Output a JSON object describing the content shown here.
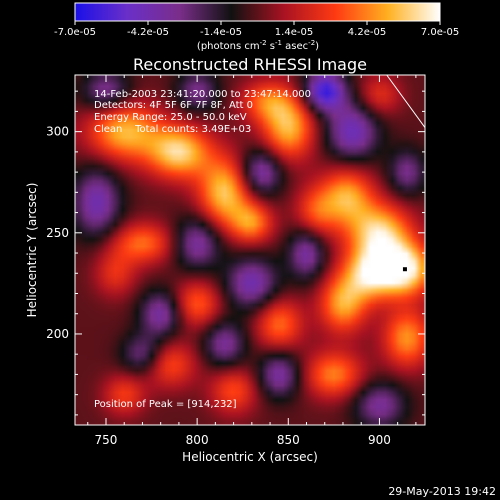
{
  "chart_data": {
    "type": "heatmap",
    "title": "Reconstructed RHESSI Image",
    "xlabel": "Heliocentric X (arcsec)",
    "ylabel": "Heliocentric Y (arcsec)",
    "xlim": [
      733,
      925
    ],
    "ylim": [
      155,
      328
    ],
    "x_ticks": [
      750,
      800,
      850,
      900
    ],
    "y_ticks": [
      200,
      250,
      300
    ],
    "colorbar": {
      "min": -7e-05,
      "max": 7e-05,
      "tick_labels": [
        "-7.0e-05",
        "-4.2e-05",
        "-1.4e-05",
        "1.4e-05",
        "4.2e-05",
        "7.0e-05"
      ],
      "unit_label_parts": {
        "pre": "(photons cm",
        "exp1": "-2",
        "mid": " s",
        "exp2": "-1",
        "mid2": " asec",
        "exp3": "-2",
        "post": ")"
      },
      "colormap": [
        "#1a10e8",
        "#6a2fc8",
        "#7a2e8a",
        "#111111",
        "#a81222",
        "#ff3a12",
        "#ffb020",
        "#ffffff"
      ]
    },
    "annotations": [
      "14-Feb-2003 23:41:20.000 to 23:47:14.000",
      "Detectors: 4F 5F 6F 7F 8F, Att 0",
      "Energy Range: 25.0 - 50.0 keV",
      "Clean    Total counts: 3.49E+03"
    ],
    "peak_label": "Position of Peak = [914,232]",
    "peak": {
      "x": 914,
      "y": 232
    },
    "blobs": [
      {
        "x": 760,
        "y": 300,
        "v": 0.75,
        "sx": 14,
        "sy": 10
      },
      {
        "x": 790,
        "y": 290,
        "v": 0.85,
        "sx": 12,
        "sy": 9
      },
      {
        "x": 815,
        "y": 270,
        "v": 0.8,
        "sx": 10,
        "sy": 12
      },
      {
        "x": 830,
        "y": 255,
        "v": 0.6,
        "sx": 8,
        "sy": 7
      },
      {
        "x": 770,
        "y": 245,
        "v": 0.55,
        "sx": 12,
        "sy": 7
      },
      {
        "x": 755,
        "y": 230,
        "v": 0.35,
        "sx": 8,
        "sy": 8
      },
      {
        "x": 850,
        "y": 302,
        "v": 0.75,
        "sx": 10,
        "sy": 11
      },
      {
        "x": 838,
        "y": 315,
        "v": 0.5,
        "sx": 10,
        "sy": 7
      },
      {
        "x": 865,
        "y": 260,
        "v": 0.45,
        "sx": 8,
        "sy": 9
      },
      {
        "x": 882,
        "y": 268,
        "v": 0.7,
        "sx": 10,
        "sy": 10
      },
      {
        "x": 900,
        "y": 250,
        "v": 0.85,
        "sx": 12,
        "sy": 10
      },
      {
        "x": 914,
        "y": 232,
        "v": 1.0,
        "sx": 10,
        "sy": 9
      },
      {
        "x": 895,
        "y": 230,
        "v": 0.85,
        "sx": 10,
        "sy": 9
      },
      {
        "x": 880,
        "y": 215,
        "v": 0.7,
        "sx": 9,
        "sy": 10
      },
      {
        "x": 915,
        "y": 198,
        "v": 0.65,
        "sx": 9,
        "sy": 10
      },
      {
        "x": 875,
        "y": 180,
        "v": 0.6,
        "sx": 11,
        "sy": 8
      },
      {
        "x": 845,
        "y": 205,
        "v": 0.55,
        "sx": 9,
        "sy": 9
      },
      {
        "x": 800,
        "y": 215,
        "v": 0.5,
        "sx": 9,
        "sy": 8
      },
      {
        "x": 785,
        "y": 185,
        "v": 0.45,
        "sx": 10,
        "sy": 8
      },
      {
        "x": 760,
        "y": 170,
        "v": 0.4,
        "sx": 8,
        "sy": 7
      },
      {
        "x": 820,
        "y": 172,
        "v": 0.45,
        "sx": 9,
        "sy": 8
      },
      {
        "x": 900,
        "y": 318,
        "v": 0.35,
        "sx": 8,
        "sy": 7
      },
      {
        "x": 870,
        "y": 320,
        "v": -0.9,
        "sx": 8,
        "sy": 7
      },
      {
        "x": 885,
        "y": 300,
        "v": -0.65,
        "sx": 10,
        "sy": 10
      },
      {
        "x": 835,
        "y": 280,
        "v": -0.6,
        "sx": 8,
        "sy": 8
      },
      {
        "x": 800,
        "y": 245,
        "v": -0.55,
        "sx": 9,
        "sy": 9
      },
      {
        "x": 745,
        "y": 265,
        "v": -0.6,
        "sx": 9,
        "sy": 12
      },
      {
        "x": 780,
        "y": 210,
        "v": -0.55,
        "sx": 8,
        "sy": 8
      },
      {
        "x": 830,
        "y": 225,
        "v": -0.6,
        "sx": 10,
        "sy": 9
      },
      {
        "x": 860,
        "y": 240,
        "v": -0.55,
        "sx": 7,
        "sy": 9
      },
      {
        "x": 815,
        "y": 195,
        "v": -0.5,
        "sx": 8,
        "sy": 8
      },
      {
        "x": 845,
        "y": 180,
        "v": -0.55,
        "sx": 8,
        "sy": 8
      },
      {
        "x": 770,
        "y": 190,
        "v": -0.45,
        "sx": 8,
        "sy": 7
      },
      {
        "x": 900,
        "y": 165,
        "v": -0.5,
        "sx": 10,
        "sy": 8
      },
      {
        "x": 915,
        "y": 280,
        "v": -0.45,
        "sx": 7,
        "sy": 8
      },
      {
        "x": 750,
        "y": 320,
        "v": -0.5,
        "sx": 9,
        "sy": 7
      },
      {
        "x": 800,
        "y": 320,
        "v": -0.45,
        "sx": 8,
        "sy": 7
      }
    ],
    "limb_line": [
      [
        904,
        328
      ],
      [
        925,
        302
      ]
    ]
  },
  "footer": {
    "date": "29-May-2013 19:42"
  }
}
